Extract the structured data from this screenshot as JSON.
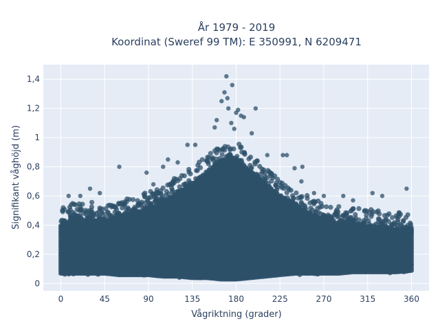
{
  "chart_data": {
    "type": "scatter",
    "title_line1": "År 1979 - 2019",
    "title_line2": "Koordinat (Sweref 99 TM): E 350991, N 6209471",
    "xlabel": "Vågriktning (grader)",
    "ylabel": "Signifikant våghöjd (m)",
    "xlim": [
      -18,
      378
    ],
    "ylim": [
      -0.05,
      1.5
    ],
    "x_ticks": [
      0,
      45,
      90,
      135,
      180,
      225,
      270,
      315,
      360
    ],
    "x_tick_labels": [
      "0",
      "45",
      "90",
      "135",
      "180",
      "225",
      "270",
      "315",
      "360"
    ],
    "y_ticks": [
      0,
      0.2,
      0.4,
      0.6,
      0.8,
      1,
      1.2,
      1.4
    ],
    "y_tick_labels": [
      "0",
      "0,2",
      "0,4",
      "0,6",
      "0,8",
      "1",
      "1,2",
      "1,4"
    ],
    "grid": true,
    "marker_color": "#2e5069",
    "plot_background": "#e5ecf6",
    "envelope_by_direction": {
      "x": [
        0,
        15,
        30,
        45,
        60,
        75,
        90,
        105,
        120,
        135,
        150,
        165,
        180,
        195,
        210,
        225,
        240,
        255,
        270,
        285,
        300,
        315,
        330,
        345,
        360
      ],
      "y_upper_dense": [
        0.44,
        0.47,
        0.48,
        0.46,
        0.49,
        0.52,
        0.55,
        0.6,
        0.66,
        0.72,
        0.8,
        0.88,
        0.9,
        0.8,
        0.72,
        0.64,
        0.58,
        0.52,
        0.48,
        0.45,
        0.44,
        0.43,
        0.42,
        0.41,
        0.4
      ],
      "y_lower_dense": [
        0.06,
        0.06,
        0.06,
        0.06,
        0.05,
        0.05,
        0.05,
        0.04,
        0.04,
        0.03,
        0.03,
        0.02,
        0.02,
        0.03,
        0.04,
        0.05,
        0.06,
        0.06,
        0.06,
        0.06,
        0.07,
        0.07,
        0.07,
        0.07,
        0.08
      ]
    },
    "outliers": {
      "x": [
        170,
        176,
        168,
        171,
        165,
        172,
        180,
        185,
        182,
        188,
        160,
        158,
        196,
        200,
        175,
        178,
        240,
        212,
        60,
        88,
        95,
        130,
        120,
        138,
        110,
        105,
        30,
        20,
        355,
        330,
        320,
        300,
        290,
        270,
        260,
        247,
        232,
        228,
        248,
        8,
        12,
        40
      ],
      "y": [
        1.42,
        1.36,
        1.31,
        1.27,
        1.25,
        1.2,
        1.17,
        1.15,
        1.19,
        1.14,
        1.12,
        1.07,
        1.03,
        1.2,
        1.1,
        1.06,
        0.79,
        0.88,
        0.8,
        0.76,
        0.68,
        0.95,
        0.83,
        0.95,
        0.85,
        0.8,
        0.65,
        0.6,
        0.65,
        0.6,
        0.62,
        0.57,
        0.6,
        0.6,
        0.62,
        0.7,
        0.88,
        0.88,
        0.8,
        0.6,
        0.55,
        0.62
      ]
    }
  }
}
